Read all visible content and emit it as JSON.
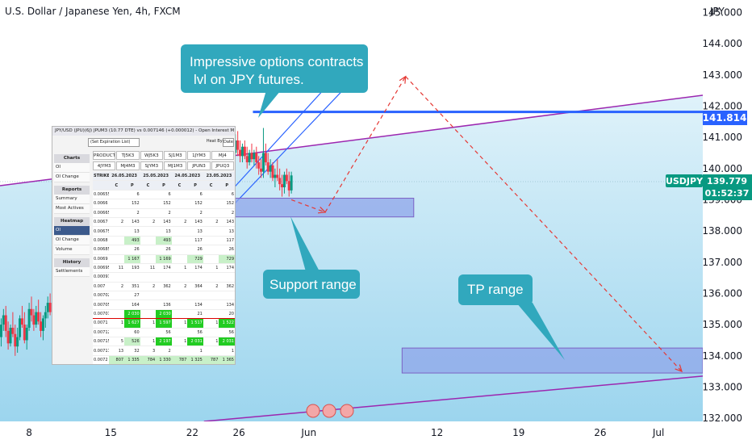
{
  "chart_data": {
    "type": "candlestick",
    "title": "U.S. Dollar / Japanese Yen, 4h, FXCM",
    "ylabel": "JPY",
    "ylim": [
      131.9,
      145.4
    ],
    "y_ticks": [
      "145.000",
      "144.000",
      "143.000",
      "142.000",
      "141.000",
      "140.000",
      "139.000",
      "138.000",
      "137.000",
      "136.000",
      "135.000",
      "134.000",
      "133.000",
      "132.000"
    ],
    "y_tick_values": [
      145,
      144,
      143,
      142,
      141,
      140,
      139,
      138,
      137,
      136,
      135,
      134,
      133,
      132
    ],
    "x_ticks": [
      "8",
      "15",
      "22",
      "26",
      "Jun",
      "12",
      "19",
      "26",
      "Jul"
    ],
    "x_tick_days": [
      8,
      15,
      22,
      26,
      32,
      43,
      50,
      57,
      62
    ],
    "xlim_days": [
      5.5,
      65.8
    ],
    "symbol_label": "USDJPY",
    "last_price": 139.779,
    "last_price_label": "139.779",
    "countdown": "01:52:37",
    "level_line": {
      "value": 141.814,
      "label": "141.814",
      "from_day": 27.2
    },
    "upper_trendline": {
      "start": {
        "day": 5.5,
        "price": 139.45
      },
      "end": {
        "day": 65.8,
        "price": 142.35
      }
    },
    "lower_trendline": {
      "start": {
        "day": 23,
        "price": 131.9
      },
      "end": {
        "day": 65.8,
        "price": 133.35
      }
    },
    "channel_lines": [
      {
        "start": {
          "day": 24.5,
          "price": 138.95
        },
        "end": {
          "day": 34.8,
          "price": 143.15
        }
      },
      {
        "start": {
          "day": 24.8,
          "price": 138.55
        },
        "end": {
          "day": 35.4,
          "price": 142.7
        }
      }
    ],
    "support_box": {
      "day_from": 24.8,
      "day_to": 41.0,
      "price_high": 139.05,
      "price_low": 138.45
    },
    "tp_box": {
      "day_from": 40.0,
      "day_to": 65.8,
      "price_high": 134.25,
      "price_low": 133.45
    },
    "projection_path": [
      {
        "day": 30.5,
        "price": 139.0
      },
      {
        "day": 33.4,
        "price": 138.6
      },
      {
        "day": 40.3,
        "price": 142.95
      },
      {
        "day": 64.0,
        "price": 133.5
      }
    ],
    "annotations": [
      {
        "text": "Impressive options contracts",
        "text2": "lvl on JPY futures."
      },
      {
        "text": "Support range"
      },
      {
        "text": "TP range"
      }
    ],
    "candles": [
      {
        "day": 5.6,
        "o": 134.6,
        "h": 135.2,
        "l": 134.3,
        "c": 135.0
      },
      {
        "day": 5.8,
        "o": 135.0,
        "h": 135.5,
        "l": 134.8,
        "c": 135.3
      },
      {
        "day": 6.0,
        "o": 135.3,
        "h": 135.6,
        "l": 134.6,
        "c": 134.8
      },
      {
        "day": 6.2,
        "o": 134.8,
        "h": 135.1,
        "l": 134.2,
        "c": 134.4
      },
      {
        "day": 6.4,
        "o": 134.4,
        "h": 135.0,
        "l": 134.3,
        "c": 134.9
      },
      {
        "day": 6.6,
        "o": 134.9,
        "h": 135.4,
        "l": 134.6,
        "c": 134.7
      },
      {
        "day": 6.8,
        "o": 134.7,
        "h": 135.0,
        "l": 134.0,
        "c": 134.3
      },
      {
        "day": 7.0,
        "o": 134.3,
        "h": 134.9,
        "l": 134.1,
        "c": 134.6
      },
      {
        "day": 7.2,
        "o": 134.6,
        "h": 135.3,
        "l": 134.5,
        "c": 135.2
      },
      {
        "day": 7.4,
        "o": 135.2,
        "h": 135.6,
        "l": 134.9,
        "c": 135.0
      },
      {
        "day": 7.6,
        "o": 135.0,
        "h": 135.4,
        "l": 134.4,
        "c": 134.5
      },
      {
        "day": 7.8,
        "o": 134.5,
        "h": 135.0,
        "l": 134.2,
        "c": 134.9
      },
      {
        "day": 8.0,
        "o": 134.9,
        "h": 135.7,
        "l": 134.8,
        "c": 135.5
      },
      {
        "day": 8.2,
        "o": 135.5,
        "h": 135.9,
        "l": 135.1,
        "c": 135.3
      },
      {
        "day": 8.4,
        "o": 135.3,
        "h": 135.5,
        "l": 134.8,
        "c": 135.0
      },
      {
        "day": 8.6,
        "o": 135.0,
        "h": 135.6,
        "l": 134.9,
        "c": 135.4
      },
      {
        "day": 8.8,
        "o": 135.4,
        "h": 135.8,
        "l": 135.0,
        "c": 135.1
      },
      {
        "day": 9.0,
        "o": 135.1,
        "h": 135.4,
        "l": 134.6,
        "c": 134.8
      },
      {
        "day": 9.2,
        "o": 134.8,
        "h": 135.3,
        "l": 134.5,
        "c": 135.2
      },
      {
        "day": 9.4,
        "o": 135.2,
        "h": 135.6,
        "l": 134.9,
        "c": 135.4
      },
      {
        "day": 9.6,
        "o": 135.4,
        "h": 135.9,
        "l": 135.2,
        "c": 135.7
      },
      {
        "day": 9.8,
        "o": 135.7,
        "h": 136.0,
        "l": 135.3,
        "c": 135.4
      },
      {
        "day": 24.3,
        "o": 139.3,
        "h": 139.8,
        "l": 138.9,
        "c": 139.6
      },
      {
        "day": 24.5,
        "o": 139.6,
        "h": 140.2,
        "l": 139.5,
        "c": 140.1
      },
      {
        "day": 24.7,
        "o": 140.1,
        "h": 140.5,
        "l": 139.8,
        "c": 140.0
      },
      {
        "day": 24.9,
        "o": 140.0,
        "h": 140.6,
        "l": 139.9,
        "c": 140.5
      },
      {
        "day": 25.1,
        "o": 140.5,
        "h": 140.9,
        "l": 140.2,
        "c": 140.3
      },
      {
        "day": 25.3,
        "o": 140.3,
        "h": 140.8,
        "l": 140.1,
        "c": 140.7
      },
      {
        "day": 25.5,
        "o": 140.7,
        "h": 141.0,
        "l": 140.3,
        "c": 140.5
      },
      {
        "day": 25.7,
        "o": 140.5,
        "h": 141.1,
        "l": 140.4,
        "c": 140.9
      },
      {
        "day": 25.9,
        "o": 140.9,
        "h": 141.2,
        "l": 140.4,
        "c": 140.6
      },
      {
        "day": 26.1,
        "o": 140.6,
        "h": 140.9,
        "l": 140.2,
        "c": 140.4
      },
      {
        "day": 26.3,
        "o": 140.4,
        "h": 140.8,
        "l": 140.2,
        "c": 140.7
      },
      {
        "day": 26.5,
        "o": 140.7,
        "h": 140.9,
        "l": 140.3,
        "c": 140.4
      },
      {
        "day": 26.7,
        "o": 140.4,
        "h": 140.7,
        "l": 140.0,
        "c": 140.2
      },
      {
        "day": 26.9,
        "o": 140.2,
        "h": 140.6,
        "l": 140.1,
        "c": 140.5
      },
      {
        "day": 27.1,
        "o": 140.5,
        "h": 140.8,
        "l": 140.2,
        "c": 140.3
      },
      {
        "day": 27.3,
        "o": 140.3,
        "h": 140.6,
        "l": 140.1,
        "c": 140.5
      },
      {
        "day": 27.5,
        "o": 140.5,
        "h": 140.7,
        "l": 140.0,
        "c": 140.2
      },
      {
        "day": 27.7,
        "o": 140.2,
        "h": 140.4,
        "l": 139.8,
        "c": 140.0
      },
      {
        "day": 27.9,
        "o": 140.0,
        "h": 140.3,
        "l": 139.7,
        "c": 139.9
      },
      {
        "day": 28.1,
        "o": 139.9,
        "h": 141.3,
        "l": 139.7,
        "c": 140.5
      },
      {
        "day": 28.3,
        "o": 140.5,
        "h": 140.8,
        "l": 140.1,
        "c": 140.2
      },
      {
        "day": 28.5,
        "o": 140.2,
        "h": 140.5,
        "l": 139.8,
        "c": 139.9
      },
      {
        "day": 28.7,
        "o": 139.9,
        "h": 140.3,
        "l": 139.7,
        "c": 140.1
      },
      {
        "day": 28.9,
        "o": 140.1,
        "h": 140.2,
        "l": 139.6,
        "c": 139.7
      },
      {
        "day": 29.1,
        "o": 139.7,
        "h": 140.0,
        "l": 139.4,
        "c": 139.8
      },
      {
        "day": 29.3,
        "o": 139.8,
        "h": 140.3,
        "l": 139.6,
        "c": 139.7
      },
      {
        "day": 29.5,
        "o": 139.7,
        "h": 140.0,
        "l": 139.3,
        "c": 139.5
      },
      {
        "day": 29.7,
        "o": 139.5,
        "h": 139.8,
        "l": 139.1,
        "c": 139.4
      },
      {
        "day": 29.9,
        "o": 139.4,
        "h": 139.9,
        "l": 139.2,
        "c": 139.8
      },
      {
        "day": 30.1,
        "o": 139.8,
        "h": 140.0,
        "l": 139.5,
        "c": 139.6
      },
      {
        "day": 30.3,
        "o": 139.6,
        "h": 139.9,
        "l": 139.1,
        "c": 139.3
      },
      {
        "day": 30.5,
        "o": 139.3,
        "h": 139.9,
        "l": 139.2,
        "c": 139.78
      }
    ]
  },
  "options_table": {
    "title": "JPY/USD (JPU)(6J) JPUM3 (10.77 DTE) vs 0.007146 (+0.000012) - Open Interest M",
    "expiration_select": "(Set Expiration List)",
    "heat_by_label": "Heat By:",
    "heat_by_value": "Date",
    "product_tabs": [
      "PRODUCT (JPU)",
      "TJ5K3",
      "WJ5K3",
      "SJ1M3",
      "1JYM3",
      "MJ4"
    ],
    "contract_tabs": [
      "4JYM3",
      "MJ4M3",
      "SJYM3",
      "MJ1M3",
      "JPUN3",
      "JPUQ3"
    ],
    "side_sections": [
      {
        "head": "Charts",
        "items": [
          "OI",
          "OI Change"
        ]
      },
      {
        "head": "Reports",
        "items": [
          "Summary",
          "Most Actives"
        ]
      },
      {
        "head": "Heatmap",
        "items": [
          "OI",
          "OI Change",
          "Volume"
        ]
      },
      {
        "head": "History",
        "items": [
          "Settlements"
        ]
      }
    ],
    "date_headers": [
      "STRIKE",
      "26.05.2023",
      "25.05.2023",
      "24.05.2023",
      "23.05.2023"
    ],
    "cp_headers": [
      "C",
      "P",
      "C",
      "P",
      "C",
      "P",
      "C",
      "P"
    ],
    "rows": [
      [
        "0.00655",
        "",
        "6",
        "",
        "6",
        "",
        "6",
        "",
        "6"
      ],
      [
        "0.0066",
        "",
        "152",
        "",
        "152",
        "",
        "152",
        "",
        "152"
      ],
      [
        "0.00665",
        "",
        "2",
        "",
        "2",
        "",
        "2",
        "",
        "2"
      ],
      [
        "0.0067",
        "2",
        "143",
        "2",
        "143",
        "2",
        "143",
        "2",
        "143"
      ],
      [
        "0.00675",
        "",
        "13",
        "",
        "13",
        "",
        "13",
        "",
        "13"
      ],
      [
        "0.0068",
        "",
        "493",
        "",
        "493",
        "",
        "117",
        "",
        "117"
      ],
      [
        "0.00685",
        "",
        "26",
        "",
        "26",
        "",
        "26",
        "",
        "26"
      ],
      [
        "0.0069",
        "",
        "1 167",
        "",
        "1 169",
        "",
        "729",
        "",
        "729"
      ],
      [
        "0.00695",
        "11",
        "193",
        "11",
        "174",
        "1",
        "174",
        "1",
        "174"
      ],
      [
        "0.000975",
        "",
        "",
        "",
        "",
        "",
        "",
        "",
        ""
      ],
      [
        "0.007",
        "2",
        "351",
        "2",
        "362",
        "2",
        "364",
        "2",
        "362"
      ],
      [
        "0.007025",
        "",
        "27",
        "",
        "",
        "",
        "",
        "",
        ""
      ],
      [
        "0.00705",
        "",
        "164",
        "",
        "136",
        "",
        "134",
        "",
        "134"
      ],
      [
        "0.007075",
        "",
        "2 030",
        "",
        "2 030",
        "",
        "21",
        "",
        "20"
      ],
      [
        "0.0071",
        "1",
        "1 627",
        "1",
        "1 597",
        "1",
        "1 517",
        "1",
        "1 522"
      ],
      [
        "0.007125",
        "",
        "60",
        "",
        "56",
        "",
        "56",
        "",
        "56"
      ],
      [
        "0.00715",
        "5",
        "526",
        "1",
        "2 197",
        "1",
        "2 031",
        "1",
        "2 031"
      ],
      [
        "0.007175",
        "13",
        "32",
        "3",
        "2",
        "",
        "1",
        "",
        "1"
      ],
      [
        "0.0072",
        "807",
        "1 335",
        "784",
        "1 330",
        "787",
        "1 325",
        "787",
        "1 365"
      ]
    ]
  },
  "colors": {
    "chart_bg_top": "#dff2fa",
    "chart_bg_bottom": "#9cd5ee",
    "up_candle": "#089981",
    "down_candle": "#f23645",
    "level_line": "#2962ff",
    "trendline": "#9c27b0",
    "channel": "#2962ff",
    "box_fill": "#8fa6ea",
    "box_stroke": "#7b61c4",
    "projection": "#e53935",
    "callout": "#31a8bd",
    "price_tag": "#089981"
  }
}
